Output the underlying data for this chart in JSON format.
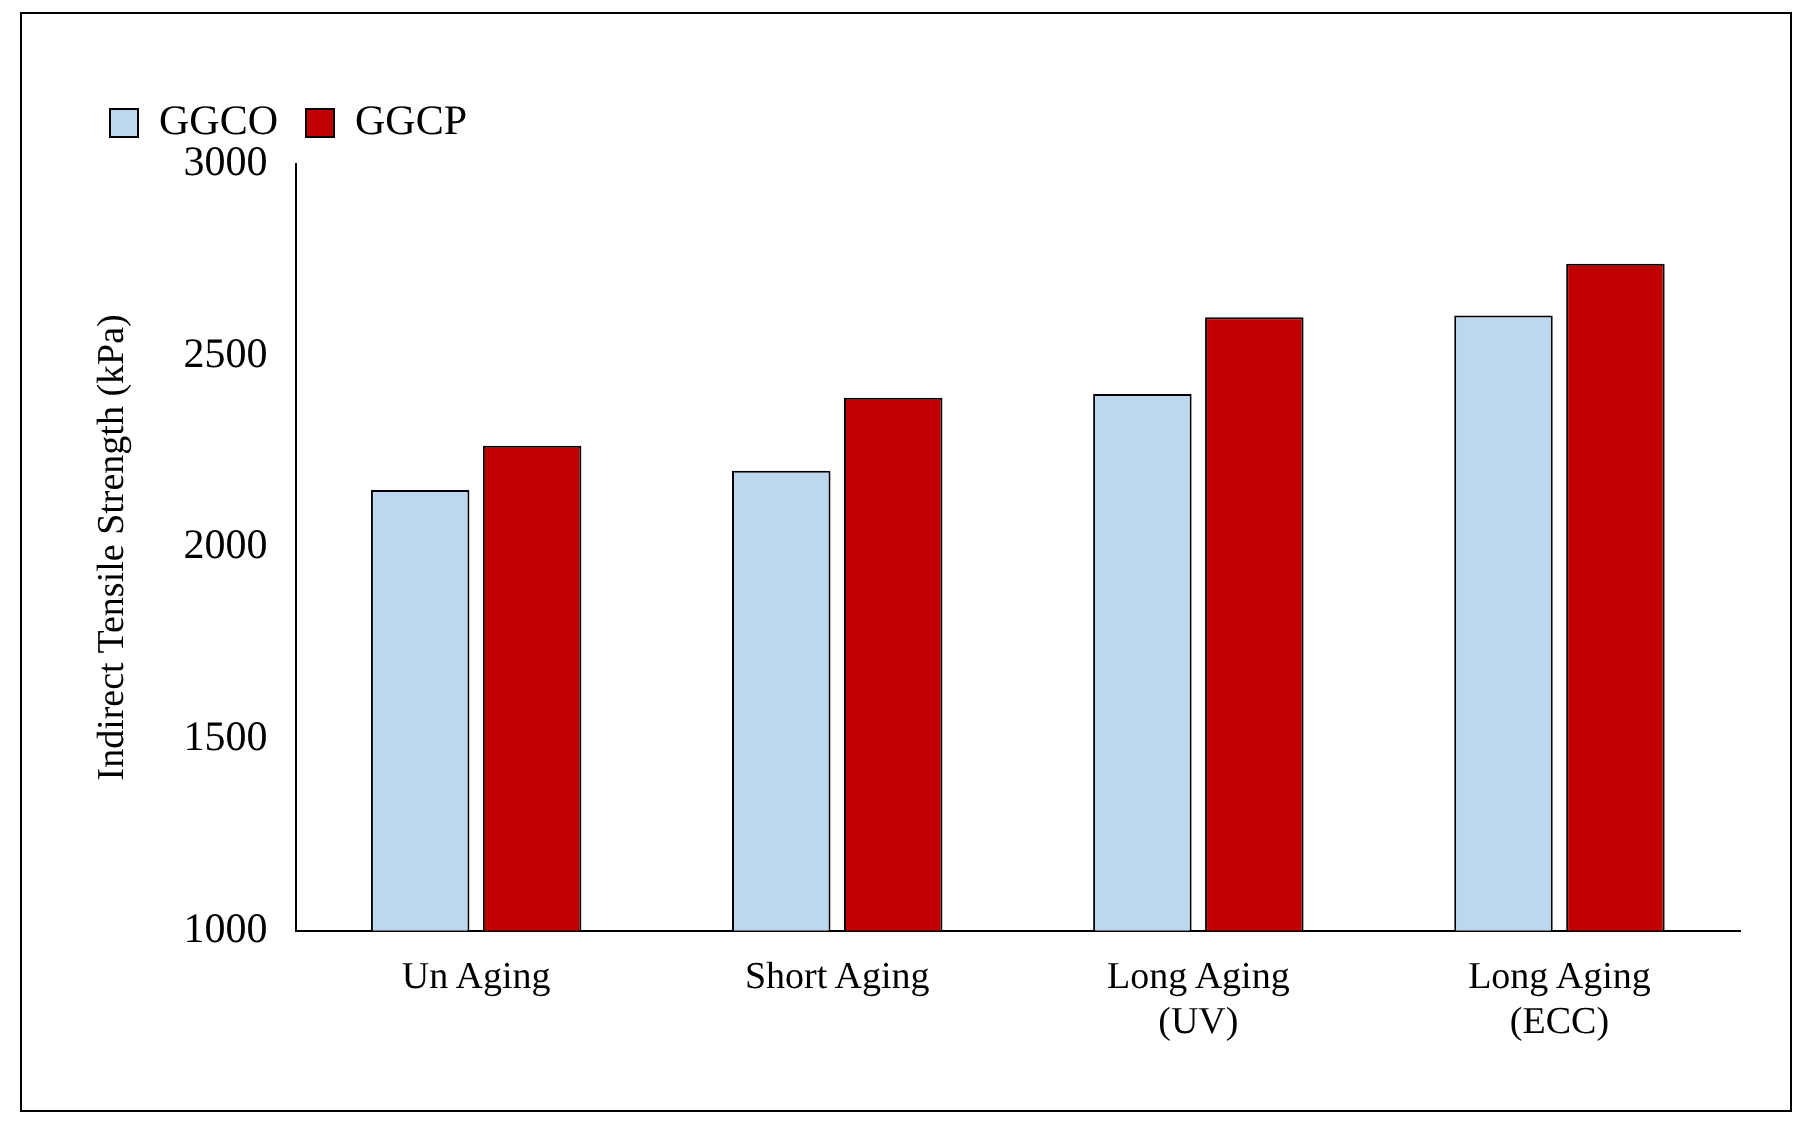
{
  "chart_data": {
    "type": "bar",
    "ylabel": "Indirect Tensile Strength (kPa)",
    "categories": [
      "Un Aging",
      "Short Aging",
      "Long Aging (UV)",
      "Long Aging (ECC)"
    ],
    "series": [
      {
        "name": "GGCO",
        "color": "#bdd7ee",
        "values": [
          2150,
          2200,
          2400,
          2605
        ]
      },
      {
        "name": "GGCP",
        "color": "#c00000",
        "values": [
          2265,
          2390,
          2600,
          2740
        ]
      }
    ],
    "ylim": [
      1000,
      3000
    ],
    "yticks": [
      1000,
      1500,
      2000,
      2500,
      3000
    ],
    "grid": false,
    "legend": "top left"
  }
}
